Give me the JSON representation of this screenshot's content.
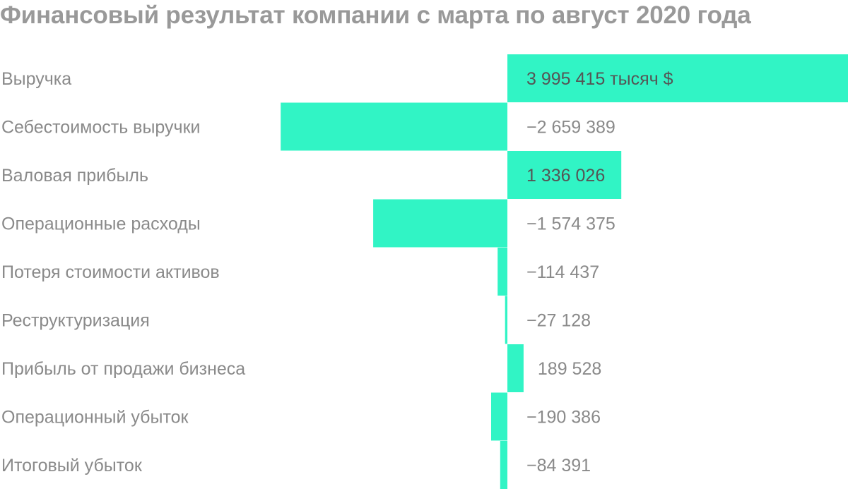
{
  "title": "Финансовый результат компании с марта по август 2020 года",
  "colors": {
    "bar": "#31f4c5",
    "text": "#8a8a8a",
    "title": "#999999"
  },
  "chart_data": {
    "type": "bar",
    "orientation": "horizontal",
    "style": "waterfall",
    "title": "Финансовый результат компании с марта по август 2020 года",
    "unit": "тысяч $",
    "categories": [
      "Выручка",
      "Себестоимость выручки",
      "Валовая прибыль",
      "Операционные расходы",
      "Потеря стоимости активов",
      "Реструктуризация",
      "Прибыль от продажи бизнеса",
      "Операционный убыток",
      "Итоговый убыток"
    ],
    "values": [
      3995415,
      -2659389,
      1336026,
      -1574375,
      -114437,
      -27128,
      189528,
      -190386,
      -84391
    ],
    "value_labels": [
      "3 995 415 тысяч $",
      "−2 659 389",
      "1 336 026",
      "−1 574 375",
      "−114 437",
      "−27 128",
      "189 528",
      "−190 386",
      "−84 391"
    ],
    "grid": false,
    "legend": "none"
  }
}
